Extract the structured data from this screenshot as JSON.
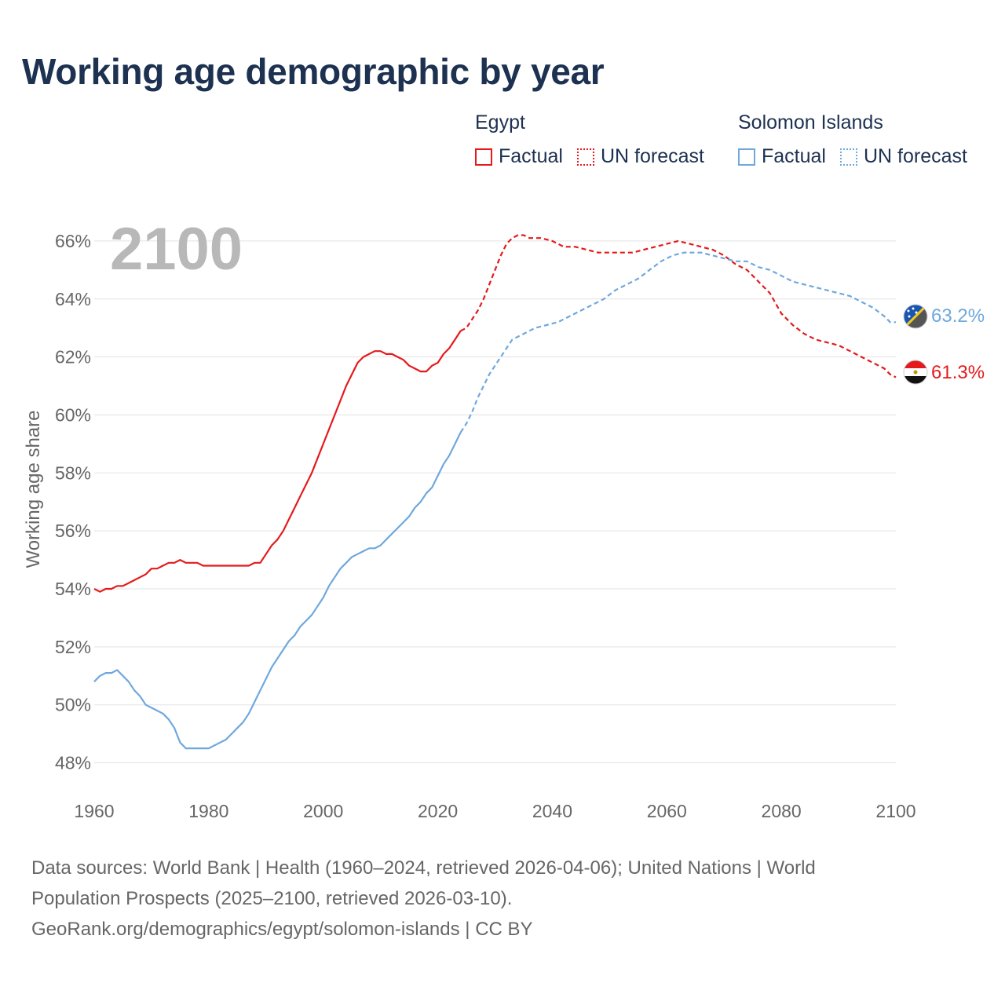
{
  "title": "Working age demographic by year",
  "legend": {
    "groups": [
      {
        "country": "Egypt",
        "factual_label": "Factual",
        "forecast_label": "UN forecast",
        "color": "#e41a1c"
      },
      {
        "country": "Solomon Islands",
        "factual_label": "Factual",
        "forecast_label": "UN forecast",
        "color": "#6fa8dc"
      }
    ]
  },
  "year_label": "2100",
  "chart_data": {
    "type": "line",
    "title": "Working age demographic by year",
    "xlabel": "",
    "ylabel": "Working age share",
    "xlim": [
      1960,
      2100
    ],
    "ylim": [
      47.5,
      67
    ],
    "x_ticks": [
      1960,
      1980,
      2000,
      2020,
      2040,
      2060,
      2080,
      2100
    ],
    "x_tick_labels": [
      "1960",
      "1980",
      "2000",
      "2020",
      "2040",
      "2060",
      "2080",
      "2100"
    ],
    "y_ticks": [
      48,
      50,
      52,
      54,
      56,
      58,
      60,
      62,
      64,
      66
    ],
    "y_tick_labels": [
      "48%",
      "50%",
      "52%",
      "54%",
      "56%",
      "58%",
      "60%",
      "62%",
      "64%",
      "66%"
    ],
    "gridlines": "horizontal",
    "forecast_start": 2024,
    "series": [
      {
        "name": "Egypt",
        "color": "#e41a1c",
        "end_label": "61.3%",
        "points": [
          [
            1960,
            54.0
          ],
          [
            1961,
            53.9
          ],
          [
            1962,
            54.0
          ],
          [
            1963,
            54.0
          ],
          [
            1964,
            54.1
          ],
          [
            1965,
            54.1
          ],
          [
            1966,
            54.2
          ],
          [
            1967,
            54.3
          ],
          [
            1968,
            54.4
          ],
          [
            1969,
            54.5
          ],
          [
            1970,
            54.7
          ],
          [
            1971,
            54.7
          ],
          [
            1972,
            54.8
          ],
          [
            1973,
            54.9
          ],
          [
            1974,
            54.9
          ],
          [
            1975,
            55.0
          ],
          [
            1976,
            54.9
          ],
          [
            1977,
            54.9
          ],
          [
            1978,
            54.9
          ],
          [
            1979,
            54.8
          ],
          [
            1980,
            54.8
          ],
          [
            1984,
            54.8
          ],
          [
            1987,
            54.8
          ],
          [
            1988,
            54.9
          ],
          [
            1989,
            54.9
          ],
          [
            1990,
            55.2
          ],
          [
            1991,
            55.5
          ],
          [
            1992,
            55.7
          ],
          [
            1993,
            56.0
          ],
          [
            1994,
            56.4
          ],
          [
            1995,
            56.8
          ],
          [
            1996,
            57.2
          ],
          [
            1997,
            57.6
          ],
          [
            1998,
            58.0
          ],
          [
            1999,
            58.5
          ],
          [
            2000,
            59.0
          ],
          [
            2001,
            59.5
          ],
          [
            2002,
            60.0
          ],
          [
            2003,
            60.5
          ],
          [
            2004,
            61.0
          ],
          [
            2005,
            61.4
          ],
          [
            2006,
            61.8
          ],
          [
            2007,
            62.0
          ],
          [
            2008,
            62.1
          ],
          [
            2009,
            62.2
          ],
          [
            2010,
            62.2
          ],
          [
            2011,
            62.1
          ],
          [
            2012,
            62.1
          ],
          [
            2013,
            62.0
          ],
          [
            2014,
            61.9
          ],
          [
            2015,
            61.7
          ],
          [
            2016,
            61.6
          ],
          [
            2017,
            61.5
          ],
          [
            2018,
            61.5
          ],
          [
            2019,
            61.7
          ],
          [
            2020,
            61.8
          ],
          [
            2021,
            62.1
          ],
          [
            2022,
            62.3
          ],
          [
            2023,
            62.6
          ],
          [
            2024,
            62.9
          ],
          [
            2025,
            63.0
          ],
          [
            2026,
            63.3
          ],
          [
            2027,
            63.6
          ],
          [
            2028,
            64.0
          ],
          [
            2029,
            64.5
          ],
          [
            2030,
            65.0
          ],
          [
            2031,
            65.5
          ],
          [
            2032,
            65.9
          ],
          [
            2033,
            66.1
          ],
          [
            2034,
            66.2
          ],
          [
            2035,
            66.2
          ],
          [
            2036,
            66.1
          ],
          [
            2038,
            66.1
          ],
          [
            2040,
            66.0
          ],
          [
            2042,
            65.8
          ],
          [
            2044,
            65.8
          ],
          [
            2046,
            65.7
          ],
          [
            2048,
            65.6
          ],
          [
            2050,
            65.6
          ],
          [
            2054,
            65.6
          ],
          [
            2056,
            65.7
          ],
          [
            2058,
            65.8
          ],
          [
            2060,
            65.9
          ],
          [
            2062,
            66.0
          ],
          [
            2064,
            65.9
          ],
          [
            2066,
            65.8
          ],
          [
            2068,
            65.7
          ],
          [
            2070,
            65.5
          ],
          [
            2072,
            65.2
          ],
          [
            2074,
            65.0
          ],
          [
            2076,
            64.6
          ],
          [
            2078,
            64.2
          ],
          [
            2080,
            63.5
          ],
          [
            2082,
            63.1
          ],
          [
            2084,
            62.8
          ],
          [
            2086,
            62.6
          ],
          [
            2088,
            62.5
          ],
          [
            2090,
            62.4
          ],
          [
            2092,
            62.2
          ],
          [
            2094,
            62.0
          ],
          [
            2096,
            61.8
          ],
          [
            2098,
            61.6
          ],
          [
            2099,
            61.4
          ],
          [
            2100,
            61.3
          ]
        ]
      },
      {
        "name": "Solomon Islands",
        "color": "#6fa8dc",
        "end_label": "63.2%",
        "points": [
          [
            1960,
            50.8
          ],
          [
            1961,
            51.0
          ],
          [
            1962,
            51.1
          ],
          [
            1963,
            51.1
          ],
          [
            1964,
            51.2
          ],
          [
            1965,
            51.0
          ],
          [
            1966,
            50.8
          ],
          [
            1967,
            50.5
          ],
          [
            1968,
            50.3
          ],
          [
            1969,
            50.0
          ],
          [
            1970,
            49.9
          ],
          [
            1971,
            49.8
          ],
          [
            1972,
            49.7
          ],
          [
            1973,
            49.5
          ],
          [
            1974,
            49.2
          ],
          [
            1975,
            48.7
          ],
          [
            1976,
            48.5
          ],
          [
            1977,
            48.5
          ],
          [
            1980,
            48.5
          ],
          [
            1981,
            48.6
          ],
          [
            1982,
            48.7
          ],
          [
            1983,
            48.8
          ],
          [
            1984,
            49.0
          ],
          [
            1985,
            49.2
          ],
          [
            1986,
            49.4
          ],
          [
            1987,
            49.7
          ],
          [
            1988,
            50.1
          ],
          [
            1989,
            50.5
          ],
          [
            1990,
            50.9
          ],
          [
            1991,
            51.3
          ],
          [
            1992,
            51.6
          ],
          [
            1993,
            51.9
          ],
          [
            1994,
            52.2
          ],
          [
            1995,
            52.4
          ],
          [
            1996,
            52.7
          ],
          [
            1997,
            52.9
          ],
          [
            1998,
            53.1
          ],
          [
            1999,
            53.4
          ],
          [
            2000,
            53.7
          ],
          [
            2001,
            54.1
          ],
          [
            2002,
            54.4
          ],
          [
            2003,
            54.7
          ],
          [
            2004,
            54.9
          ],
          [
            2005,
            55.1
          ],
          [
            2006,
            55.2
          ],
          [
            2007,
            55.3
          ],
          [
            2008,
            55.4
          ],
          [
            2009,
            55.4
          ],
          [
            2010,
            55.5
          ],
          [
            2011,
            55.7
          ],
          [
            2012,
            55.9
          ],
          [
            2013,
            56.1
          ],
          [
            2014,
            56.3
          ],
          [
            2015,
            56.5
          ],
          [
            2016,
            56.8
          ],
          [
            2017,
            57.0
          ],
          [
            2018,
            57.3
          ],
          [
            2019,
            57.5
          ],
          [
            2020,
            57.9
          ],
          [
            2021,
            58.3
          ],
          [
            2022,
            58.6
          ],
          [
            2023,
            59.0
          ],
          [
            2024,
            59.4
          ],
          [
            2025,
            59.7
          ],
          [
            2026,
            60.1
          ],
          [
            2027,
            60.6
          ],
          [
            2028,
            61.0
          ],
          [
            2029,
            61.4
          ],
          [
            2030,
            61.7
          ],
          [
            2031,
            62.0
          ],
          [
            2032,
            62.3
          ],
          [
            2033,
            62.6
          ],
          [
            2035,
            62.8
          ],
          [
            2037,
            63.0
          ],
          [
            2039,
            63.1
          ],
          [
            2041,
            63.2
          ],
          [
            2043,
            63.4
          ],
          [
            2045,
            63.6
          ],
          [
            2047,
            63.8
          ],
          [
            2049,
            64.0
          ],
          [
            2051,
            64.3
          ],
          [
            2053,
            64.5
          ],
          [
            2055,
            64.7
          ],
          [
            2057,
            65.0
          ],
          [
            2059,
            65.3
          ],
          [
            2061,
            65.5
          ],
          [
            2063,
            65.6
          ],
          [
            2066,
            65.6
          ],
          [
            2068,
            65.5
          ],
          [
            2070,
            65.4
          ],
          [
            2072,
            65.3
          ],
          [
            2074,
            65.3
          ],
          [
            2076,
            65.1
          ],
          [
            2078,
            65.0
          ],
          [
            2080,
            64.8
          ],
          [
            2082,
            64.6
          ],
          [
            2084,
            64.5
          ],
          [
            2086,
            64.4
          ],
          [
            2088,
            64.3
          ],
          [
            2090,
            64.2
          ],
          [
            2092,
            64.1
          ],
          [
            2094,
            63.9
          ],
          [
            2096,
            63.7
          ],
          [
            2098,
            63.4
          ],
          [
            2099,
            63.2
          ],
          [
            2100,
            63.2
          ]
        ]
      }
    ]
  },
  "footer": {
    "line1": "Data sources: World Bank | Health (1960–2024, retrieved 2026-04-06); United Nations | World",
    "line2": "Population Prospects (2025–2100, retrieved 2026-03-10).",
    "line3": "GeoRank.org/demographics/egypt/solomon-islands | CC BY"
  }
}
